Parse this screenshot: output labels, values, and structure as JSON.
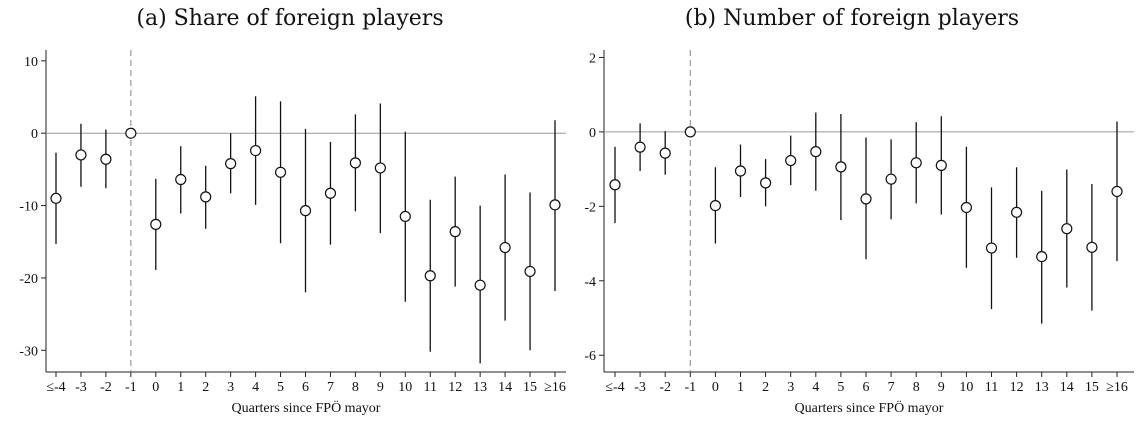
{
  "chart_data": [
    {
      "type": "scatter",
      "subtype": "coefficient-plot-with-confidence-intervals",
      "title": "(a) Share of foreign players",
      "xlabel": "Quarters since FPÖ mayor",
      "ylabel": "",
      "categories": [
        "≤-4",
        "-3",
        "-2",
        "-1",
        "0",
        "1",
        "2",
        "3",
        "4",
        "5",
        "6",
        "7",
        "8",
        "9",
        "10",
        "11",
        "12",
        "13",
        "14",
        "15",
        "≥16"
      ],
      "estimates": [
        -9.0,
        -3.0,
        -3.6,
        0.0,
        -12.6,
        -6.4,
        -8.8,
        -4.2,
        -2.4,
        -5.4,
        -10.7,
        -8.3,
        -4.1,
        -4.8,
        -11.5,
        -19.7,
        -13.6,
        -21.0,
        -15.8,
        -19.1,
        -9.9
      ],
      "ci_lower": [
        -15.3,
        -7.4,
        -7.6,
        0.0,
        -18.9,
        -11.1,
        -13.2,
        -8.3,
        -9.9,
        -15.2,
        -22.0,
        -15.4,
        -10.8,
        -13.8,
        -23.3,
        -30.2,
        -21.2,
        -31.8,
        -25.9,
        -30.0,
        -21.8
      ],
      "ci_upper": [
        -2.7,
        1.3,
        0.5,
        0.0,
        -6.3,
        -1.8,
        -4.5,
        0.0,
        5.1,
        4.4,
        0.6,
        -1.2,
        2.6,
        4.1,
        0.2,
        -9.2,
        -6.0,
        -10.0,
        -5.7,
        -8.2,
        1.8
      ],
      "yticks": [
        10,
        0,
        -10,
        -20,
        -30
      ],
      "ylim": [
        -33,
        11.5
      ],
      "reference_line_y": 0,
      "event_line_at": "-1",
      "grid": false
    },
    {
      "type": "scatter",
      "subtype": "coefficient-plot-with-confidence-intervals",
      "title": "(b) Number of foreign players",
      "xlabel": "Quarters since FPÖ mayor",
      "ylabel": "",
      "categories": [
        "≤-4",
        "-3",
        "-2",
        "-1",
        "0",
        "1",
        "2",
        "3",
        "4",
        "5",
        "6",
        "7",
        "8",
        "9",
        "10",
        "11",
        "12",
        "13",
        "14",
        "15",
        "≥16"
      ],
      "estimates": [
        -1.42,
        -0.41,
        -0.57,
        0.0,
        -1.98,
        -1.05,
        -1.37,
        -0.77,
        -0.53,
        -0.94,
        -1.8,
        -1.27,
        -0.83,
        -0.9,
        -2.03,
        -3.12,
        -2.16,
        -3.35,
        -2.6,
        -3.1,
        -1.6
      ],
      "ci_lower": [
        -2.45,
        -1.05,
        -1.15,
        0.0,
        -3.0,
        -1.75,
        -2.0,
        -1.43,
        -1.58,
        -2.37,
        -3.42,
        -2.35,
        -1.92,
        -2.22,
        -3.65,
        -4.76,
        -3.38,
        -5.15,
        -4.18,
        -4.8,
        -3.47
      ],
      "ci_upper": [
        -0.4,
        0.23,
        0.02,
        0.0,
        -0.95,
        -0.34,
        -0.73,
        -0.1,
        0.52,
        0.48,
        -0.15,
        -0.2,
        0.26,
        0.42,
        -0.4,
        -1.49,
        -0.95,
        -1.58,
        -1.01,
        -1.4,
        0.28
      ],
      "yticks": [
        2,
        0,
        -2,
        -4,
        -6
      ],
      "ylim": [
        -6.45,
        2.2
      ],
      "reference_line_y": 0,
      "event_line_at": "-1",
      "grid": false
    }
  ]
}
